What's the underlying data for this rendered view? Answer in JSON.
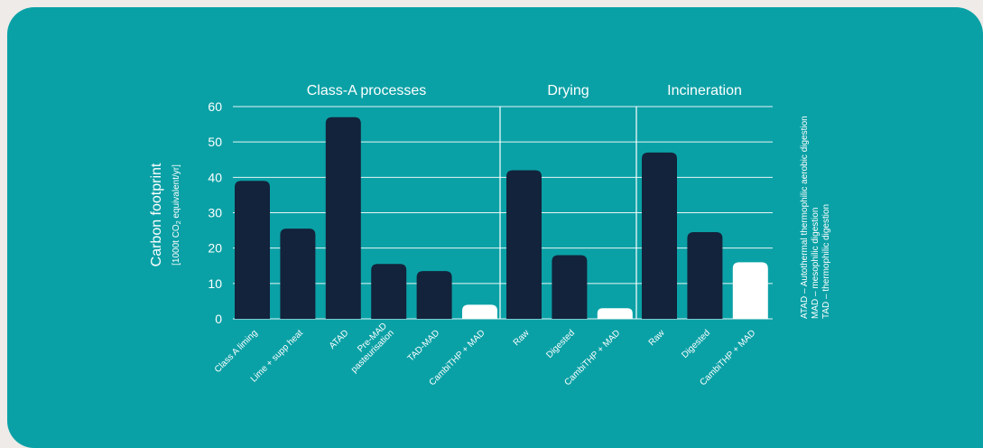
{
  "colors": {
    "background": "#eeebe8",
    "card": "#0aa1a6",
    "bar_dark": "#13233b",
    "bar_highlight": "#ffffff",
    "text": "#ffffff",
    "grid": "#ffffff"
  },
  "chart_data": {
    "type": "bar",
    "title": "",
    "ylabel": "Carbon footprint",
    "ylabel_units_before": "[1000t CO",
    "ylabel_units_sub": "2",
    "ylabel_units_after": " equivalent/yr]",
    "ylim": [
      0,
      60
    ],
    "yticks": [
      "0",
      "10",
      "20",
      "30",
      "40",
      "50",
      "60"
    ],
    "grid": true,
    "groups": [
      {
        "name": "Class-A processes",
        "categories": [
          "Class A liming",
          "Lime + supp heat",
          "ATAD",
          "Pre-MAD\npasteurisation",
          "TAD-MAD",
          "CambiTHP + MAD"
        ],
        "values": [
          39,
          25.5,
          57,
          15.5,
          13.5,
          4
        ],
        "highlight": [
          false,
          false,
          false,
          false,
          false,
          true
        ]
      },
      {
        "name": "Drying",
        "categories": [
          "Raw",
          "Digested",
          "CambiTHP + MAD"
        ],
        "values": [
          42,
          18,
          3
        ],
        "highlight": [
          false,
          false,
          true
        ]
      },
      {
        "name": "Incineration",
        "categories": [
          "Raw",
          "Digested",
          "CambiTHP + MAD"
        ],
        "values": [
          47,
          24.5,
          16
        ],
        "highlight": [
          false,
          false,
          true
        ]
      }
    ],
    "notes": [
      "ATAD – Autothermal thermophilic aerobic digestion",
      "MAD – mesophilic digestion",
      "TAD – thermophilic digestion"
    ]
  }
}
